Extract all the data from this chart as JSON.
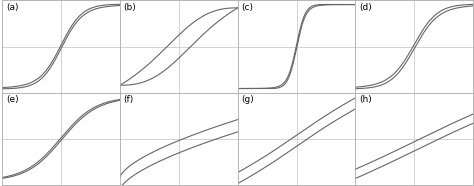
{
  "panels": [
    "(a)",
    "(b)",
    "(c)",
    "(d)",
    "(e)",
    "(f)",
    "(g)",
    "(h)"
  ],
  "background_color": "#ffffff",
  "line_color": "#666666",
  "border_color": "#aaaaaa",
  "label_fontsize": 6.5,
  "panel_configs": [
    {
      "type": "sigmoid_tight",
      "two_lines": true,
      "row": 0,
      "col": 0,
      "k1": 5.0,
      "k2": 5.0,
      "sep": 0.04,
      "ylim": [
        -1.1,
        1.1
      ],
      "xlim": [
        -1.1,
        1.1
      ]
    },
    {
      "type": "sigmoid_wide",
      "two_lines": true,
      "row": 0,
      "col": 1,
      "k1": 2.2,
      "k2": 2.2,
      "sep": 0.25,
      "ylim": [
        -1.0,
        1.0
      ],
      "xlim": [
        -1.1,
        1.1
      ]
    },
    {
      "type": "sigmoid_sharp",
      "two_lines": true,
      "row": 0,
      "col": 2,
      "k1": 12.0,
      "k2": 12.0,
      "sep": 0.04,
      "ylim": [
        -1.1,
        1.1
      ],
      "xlim": [
        -1.1,
        1.1
      ]
    },
    {
      "type": "sigmoid_medium",
      "two_lines": true,
      "row": 0,
      "col": 3,
      "k1": 4.5,
      "k2": 4.5,
      "sep": 0.05,
      "ylim": [
        -1.1,
        1.1
      ],
      "xlim": [
        -1.1,
        1.1
      ]
    },
    {
      "type": "sigmoid_slow",
      "two_lines": true,
      "row": 1,
      "col": 0,
      "k1": 3.0,
      "k2": 3.0,
      "sep": 0.03,
      "ylim": [
        -1.1,
        1.1
      ],
      "xlim": [
        -1.1,
        1.1
      ]
    },
    {
      "type": "concave_up",
      "two_lines": true,
      "row": 1,
      "col": 1,
      "k1": 1.5,
      "k2": 1.5,
      "sep": 0.08,
      "ylim": [
        -0.2,
        1.0
      ],
      "xlim": [
        -1.1,
        1.1
      ]
    },
    {
      "type": "linear_slight",
      "two_lines": true,
      "row": 1,
      "col": 2,
      "k1": 1.0,
      "k2": 1.0,
      "sep": 0.06,
      "ylim": [
        -0.2,
        0.8
      ],
      "xlim": [
        -1.1,
        1.1
      ]
    },
    {
      "type": "linear_flat",
      "two_lines": true,
      "row": 1,
      "col": 3,
      "k1": 0.8,
      "k2": 0.8,
      "sep": 0.05,
      "ylim": [
        -0.2,
        0.8
      ],
      "xlim": [
        -1.1,
        1.1
      ]
    }
  ]
}
